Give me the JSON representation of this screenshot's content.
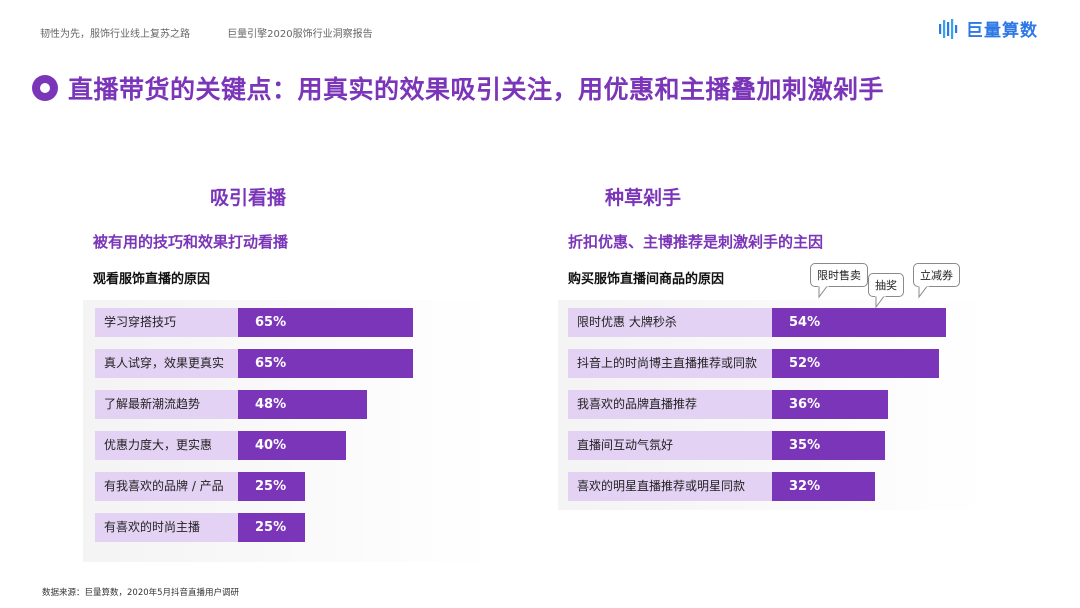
{
  "header": {
    "left_1": "韧性为先，服饰行业线上复苏之路",
    "left_2": "巨量引擎2020服饰行业洞察报告",
    "brand_name": "巨量算数"
  },
  "title": "直播带货的关键点：用真实的效果吸引关注，用优惠和主播叠加刺激剁手",
  "colors": {
    "accent": "#7b35b8",
    "label_bg": "#e4d2f5",
    "brand": "#2e78e6"
  },
  "bubbles": [
    "限时售卖",
    "抽奖",
    "立减券"
  ],
  "source": "数据来源：巨量算数，2020年5月抖音直播用户调研",
  "chart_data": [
    {
      "type": "bar",
      "orientation": "horizontal",
      "title": "吸引看播",
      "subtitle": "被有用的技巧和效果打动看播",
      "caption": "观看服饰直播的原因",
      "categories": [
        "学习穿搭技巧",
        "真人试穿，效果更真实",
        "了解最新潮流趋势",
        "优惠力度大，更实惠",
        "有我喜欢的品牌 / 产品",
        "有喜欢的时尚主播"
      ],
      "values": [
        65,
        65,
        48,
        40,
        25,
        25
      ],
      "value_labels": [
        "65%",
        "65%",
        "48%",
        "40%",
        "25%",
        "25%"
      ],
      "unit": "%"
    },
    {
      "type": "bar",
      "orientation": "horizontal",
      "title": "种草剁手",
      "subtitle": "折扣优惠、主博推荐是刺激剁手的主因",
      "caption": "购买服饰直播间商品的原因",
      "categories": [
        "限时优惠 大牌秒杀",
        "抖音上的时尚博主直播推荐或同款",
        "我喜欢的品牌直播推荐",
        "直播间互动气氛好",
        "喜欢的明星直播推荐或明星同款"
      ],
      "values": [
        54,
        52,
        36,
        35,
        32
      ],
      "value_labels": [
        "54%",
        "52%",
        "36%",
        "35%",
        "32%"
      ],
      "unit": "%"
    }
  ]
}
